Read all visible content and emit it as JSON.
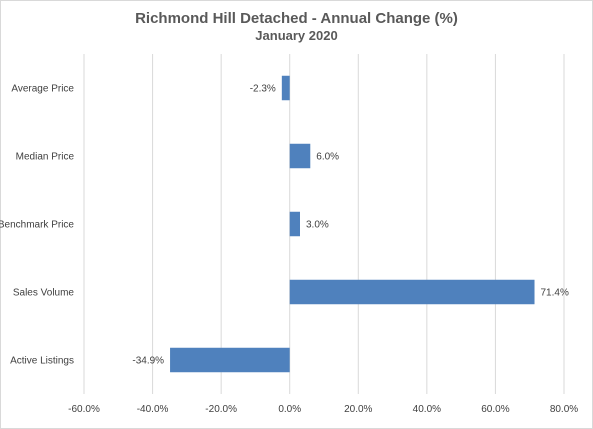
{
  "chart_data": {
    "type": "bar",
    "orientation": "horizontal",
    "title": "Richmond Hill Detached - Annual Change (%)",
    "subtitle": "January 2020",
    "categories": [
      "Average Price",
      "Median Price",
      "Benchmark Price",
      "Sales Volume",
      "Active Listings"
    ],
    "values": [
      -2.3,
      6.0,
      3.0,
      71.4,
      -34.9
    ],
    "value_labels": [
      "-2.3%",
      "6.0%",
      "3.0%",
      "71.4%",
      "-34.9%"
    ],
    "xlim": [
      -60,
      80
    ],
    "x_ticks": [
      -60,
      -40,
      -20,
      0,
      20,
      40,
      60,
      80
    ],
    "x_tick_labels": [
      "-60.0%",
      "-40.0%",
      "-20.0%",
      "0.0%",
      "20.0%",
      "40.0%",
      "60.0%",
      "80.0%"
    ],
    "grid": "vertical",
    "legend": "none",
    "bar_color": "#4f81bd",
    "grid_color": "#d9d9d9"
  }
}
